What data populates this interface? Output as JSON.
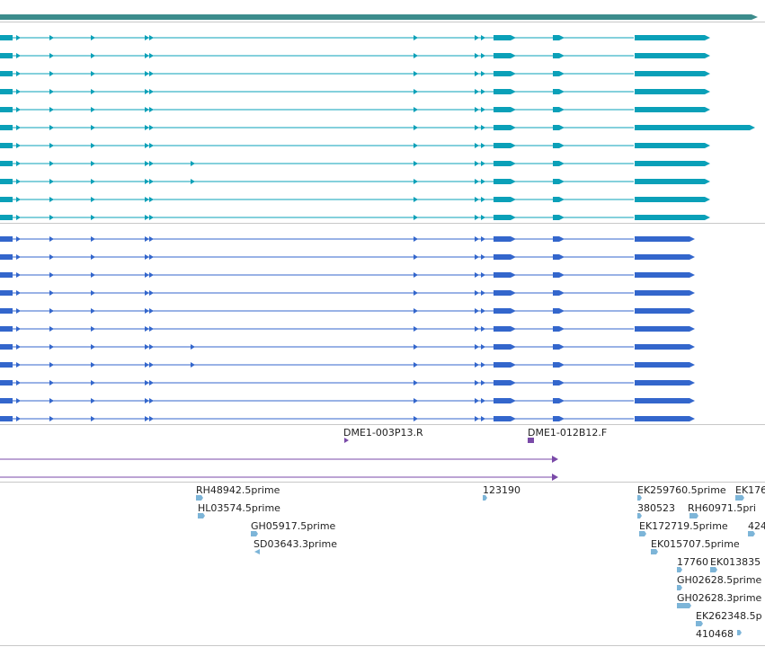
{
  "colors": {
    "gene_span": "#3c8c8c",
    "transcript_top": "#0aa0b8",
    "transcript_mid": "#3366cc",
    "segment": "#7a4aa8",
    "est": "#7db5d8",
    "divider": "#c8c8c8"
  },
  "segment_labels": [
    {
      "label": "DME1-003P13.R"
    },
    {
      "label": "DME1-012B12.F"
    }
  ],
  "est_labels": [
    {
      "label": "RH48942.5prime"
    },
    {
      "label": "HL03574.5prime"
    },
    {
      "label": "GH05917.5prime"
    },
    {
      "label": "SD03643.3prime"
    },
    {
      "label": "123190"
    },
    {
      "label": "EK259760.5prime"
    },
    {
      "label": "EK176"
    },
    {
      "label": "380523"
    },
    {
      "label": "RH60971.5pri"
    },
    {
      "label": "EK172719.5prime"
    },
    {
      "label": "424"
    },
    {
      "label": "EK015707.5prime"
    },
    {
      "label": "17760"
    },
    {
      "label": "EK013835"
    },
    {
      "label": "GH02628.5prime"
    },
    {
      "label": "GH02628.3prime"
    },
    {
      "label": "EK262348.5p"
    },
    {
      "label": "410468"
    }
  ]
}
